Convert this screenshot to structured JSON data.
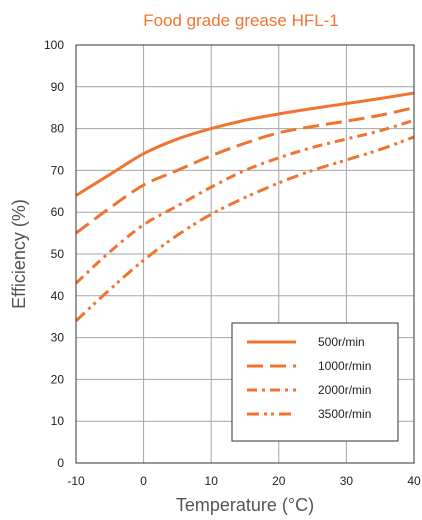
{
  "chart_data": {
    "type": "line",
    "title": "Food grade grease HFL-1",
    "xlabel": "Temperature (°C)",
    "ylabel": "Efficiency (%)",
    "xlim": [
      -10,
      40
    ],
    "ylim": [
      0,
      100
    ],
    "xticks": [
      "-10",
      "0",
      "10",
      "20",
      "30",
      "40"
    ],
    "yticks": [
      "0",
      "10",
      "20",
      "30",
      "40",
      "50",
      "60",
      "70",
      "80",
      "90",
      "100"
    ],
    "grid": true,
    "legend_position": "bottom-right",
    "series": [
      {
        "name": "500r/min",
        "dash": "solid",
        "x": [
          -10,
          -5,
          0,
          5,
          10,
          15,
          20,
          25,
          30,
          35,
          40
        ],
        "y": [
          64,
          69,
          74,
          77.5,
          80,
          82,
          83.5,
          84.8,
          86,
          87.2,
          88.5
        ]
      },
      {
        "name": "1000r/min",
        "dash": "long-dash",
        "x": [
          -10,
          -5,
          0,
          5,
          10,
          15,
          20,
          25,
          30,
          35,
          40
        ],
        "y": [
          55,
          61,
          66.5,
          70,
          73.5,
          76.5,
          79,
          80.5,
          81.8,
          83.2,
          85
        ]
      },
      {
        "name": "2000r/min",
        "dash": "dash-dot",
        "x": [
          -10,
          -5,
          0,
          5,
          10,
          15,
          20,
          25,
          30,
          35,
          40
        ],
        "y": [
          43,
          50.5,
          57,
          61.5,
          66,
          70,
          73,
          75.5,
          77.5,
          79.5,
          82
        ]
      },
      {
        "name": "3500r/min",
        "dash": "dash-dot-dot",
        "x": [
          -10,
          -5,
          0,
          5,
          10,
          15,
          20,
          25,
          30,
          35,
          40
        ],
        "y": [
          34,
          41.5,
          48.5,
          54.5,
          59.5,
          63.5,
          67,
          70,
          72.5,
          75,
          78
        ]
      }
    ]
  },
  "colors": {
    "series": "#f07430",
    "title": "#f07430",
    "grid": "#a6a6a6",
    "frame": "#333333"
  }
}
